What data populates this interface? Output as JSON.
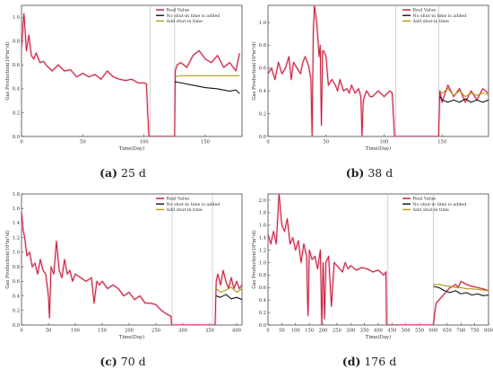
{
  "chart_data": [
    {
      "type": "line",
      "caption_label": "(a)",
      "caption_text": "25 d",
      "xlabel": "Time(Day)",
      "ylabel": "Gas Production(10⁴m³/d)",
      "xlim": [
        0,
        180
      ],
      "ylim": [
        0,
        1.1
      ],
      "xticks": [
        0,
        50,
        100,
        150
      ],
      "yticks": [
        0.0,
        0.2,
        0.4,
        0.6,
        0.8,
        1.0
      ],
      "vlines": [
        105,
        125
      ],
      "legend_position": "top-right",
      "series": [
        {
          "name": "Real Value",
          "color": "#c0142a",
          "x": [
            0,
            2,
            4,
            6,
            8,
            10,
            12,
            15,
            18,
            20,
            25,
            30,
            35,
            40,
            45,
            50,
            55,
            60,
            65,
            70,
            75,
            80,
            85,
            90,
            95,
            100,
            102,
            103,
            104,
            125,
            125.5,
            127,
            130,
            135,
            140,
            145,
            150,
            155,
            160,
            165,
            170,
            175,
            178
          ],
          "y": [
            0.75,
            1.03,
            0.72,
            0.85,
            0.68,
            0.65,
            0.7,
            0.62,
            0.63,
            0.6,
            0.55,
            0.6,
            0.55,
            0.56,
            0.5,
            0.53,
            0.5,
            0.52,
            0.48,
            0.55,
            0.5,
            0.48,
            0.47,
            0.48,
            0.45,
            0.45,
            0.44,
            0.2,
            0.0,
            0.0,
            0.55,
            0.6,
            0.62,
            0.58,
            0.68,
            0.72,
            0.65,
            0.62,
            0.68,
            0.58,
            0.62,
            0.55,
            0.7
          ]
        },
        {
          "name": "No shut-in time is added",
          "color": "#111111",
          "x": [
            125,
            130,
            140,
            150,
            160,
            170,
            175,
            178
          ],
          "y": [
            0.46,
            0.45,
            0.43,
            0.41,
            0.4,
            0.38,
            0.39,
            0.36
          ]
        },
        {
          "name": "Add shut-in time",
          "color": "#b59a0e",
          "x": [
            125,
            130,
            140,
            150,
            160,
            170,
            178
          ],
          "y": [
            0.5,
            0.51,
            0.51,
            0.51,
            0.51,
            0.51,
            0.51
          ]
        }
      ]
    },
    {
      "type": "line",
      "caption_label": "(b)",
      "caption_text": "38 d",
      "xlabel": "Time(Day)",
      "ylabel": "Gas Production(10⁴m³/d)",
      "xlim": [
        0,
        190
      ],
      "ylim": [
        0,
        1.15
      ],
      "xticks": [
        0,
        50,
        100,
        150
      ],
      "yticks": [
        0.0,
        0.2,
        0.4,
        0.6,
        0.8,
        1.0
      ],
      "vlines": [
        110,
        147
      ],
      "legend_position": "top-right",
      "series": [
        {
          "name": "Real Value",
          "color": "#c0142a",
          "x": [
            0,
            3,
            6,
            9,
            12,
            15,
            18,
            20,
            22,
            25,
            28,
            30,
            32,
            35,
            37,
            38,
            39,
            40,
            42,
            44,
            45,
            46,
            47,
            48,
            50,
            52,
            55,
            58,
            60,
            62,
            65,
            68,
            70,
            72,
            75,
            78,
            80,
            81,
            82,
            83,
            85,
            88,
            90,
            95,
            100,
            105,
            107,
            108,
            109,
            147,
            148,
            150,
            155,
            160,
            165,
            170,
            175,
            180,
            185,
            190
          ],
          "y": [
            0.55,
            0.6,
            0.5,
            0.65,
            0.55,
            0.6,
            0.7,
            0.5,
            0.65,
            0.6,
            0.55,
            0.65,
            0.7,
            0.62,
            0.5,
            0.0,
            0.9,
            1.15,
            1.0,
            0.7,
            0.8,
            0.1,
            0.75,
            0.75,
            0.7,
            0.45,
            0.5,
            0.45,
            0.4,
            0.5,
            0.4,
            0.42,
            0.38,
            0.45,
            0.38,
            0.42,
            0.35,
            0.0,
            0.3,
            0.35,
            0.4,
            0.35,
            0.35,
            0.4,
            0.35,
            0.4,
            0.38,
            0.2,
            0.0,
            0.0,
            0.4,
            0.3,
            0.45,
            0.35,
            0.42,
            0.3,
            0.4,
            0.32,
            0.42,
            0.38
          ]
        },
        {
          "name": "No shut-in time is added",
          "color": "#111111",
          "x": [
            148,
            150,
            155,
            160,
            165,
            170,
            175,
            180,
            185,
            190
          ],
          "y": [
            0.35,
            0.32,
            0.3,
            0.32,
            0.3,
            0.33,
            0.3,
            0.32,
            0.3,
            0.32
          ]
        },
        {
          "name": "Add shut-in time",
          "color": "#b59a0e",
          "x": [
            148,
            150,
            155,
            160,
            165,
            170,
            175,
            180,
            185,
            190
          ],
          "y": [
            0.4,
            0.38,
            0.42,
            0.36,
            0.4,
            0.35,
            0.38,
            0.36,
            0.38,
            0.37
          ]
        }
      ]
    },
    {
      "type": "line",
      "caption_label": "(c)",
      "caption_text": "70 d",
      "xlabel": "Time(Day)",
      "ylabel": "Gas Production(10⁴m³/d)",
      "xlim": [
        0,
        410
      ],
      "ylim": [
        0,
        1.8
      ],
      "xticks": [
        0,
        50,
        100,
        150,
        200,
        250,
        300,
        350,
        400
      ],
      "yticks": [
        0.0,
        0.2,
        0.4,
        0.6,
        0.8,
        1.0,
        1.2,
        1.4,
        1.6,
        1.8
      ],
      "vlines": [
        280,
        355
      ],
      "legend_position": "top-right",
      "series": [
        {
          "name": "Real Value",
          "color": "#c0142a",
          "x": [
            0,
            3,
            6,
            10,
            15,
            20,
            25,
            30,
            35,
            40,
            45,
            50,
            52,
            55,
            60,
            65,
            70,
            75,
            80,
            85,
            90,
            95,
            100,
            110,
            120,
            130,
            135,
            140,
            145,
            150,
            160,
            170,
            180,
            190,
            200,
            210,
            220,
            230,
            240,
            250,
            260,
            270,
            278,
            279,
            360,
            362,
            365,
            370,
            375,
            380,
            385,
            390,
            395,
            400,
            405,
            410
          ],
          "y": [
            1.55,
            1.3,
            1.2,
            0.95,
            1.0,
            0.8,
            0.85,
            0.7,
            0.9,
            0.75,
            0.7,
            0.4,
            0.1,
            0.8,
            0.7,
            1.15,
            0.75,
            0.65,
            0.9,
            0.7,
            0.75,
            0.6,
            0.7,
            0.65,
            0.6,
            0.65,
            0.3,
            0.6,
            0.55,
            0.6,
            0.5,
            0.55,
            0.5,
            0.4,
            0.45,
            0.35,
            0.4,
            0.3,
            0.3,
            0.28,
            0.2,
            0.15,
            0.12,
            0.0,
            0.0,
            0.6,
            0.7,
            0.55,
            0.75,
            0.6,
            0.5,
            0.65,
            0.5,
            0.6,
            0.5,
            0.55
          ]
        },
        {
          "name": "No shut-in time is added",
          "color": "#111111",
          "x": [
            362,
            370,
            380,
            390,
            400,
            410
          ],
          "y": [
            0.4,
            0.38,
            0.42,
            0.36,
            0.38,
            0.35
          ]
        },
        {
          "name": "Add shut-in time",
          "color": "#b59a0e",
          "x": [
            362,
            370,
            380,
            390,
            400,
            410
          ],
          "y": [
            0.5,
            0.45,
            0.48,
            0.52,
            0.45,
            0.5
          ]
        }
      ]
    },
    {
      "type": "line",
      "caption_label": "(d)",
      "caption_text": "176 d",
      "xlabel": "Time(Day)",
      "ylabel": "Gas Production(10⁴m³/d)",
      "xlim": [
        0,
        800
      ],
      "ylim": [
        0,
        2.1
      ],
      "xticks": [
        0,
        50,
        100,
        150,
        200,
        250,
        300,
        350,
        400,
        450,
        500,
        550,
        600,
        650,
        700,
        750,
        800
      ],
      "yticks": [
        0.0,
        0.2,
        0.4,
        0.6,
        0.8,
        1.0,
        1.2,
        1.4,
        1.6,
        1.8,
        2.0
      ],
      "vlines": [
        435,
        600
      ],
      "legend_position": "top-right",
      "series": [
        {
          "name": "Real Value",
          "color": "#c0142a",
          "x": [
            0,
            10,
            20,
            30,
            40,
            50,
            60,
            70,
            80,
            90,
            100,
            110,
            120,
            130,
            140,
            145,
            150,
            160,
            170,
            180,
            190,
            195,
            200,
            205,
            210,
            220,
            230,
            240,
            250,
            260,
            270,
            280,
            290,
            300,
            320,
            340,
            360,
            380,
            400,
            420,
            428,
            430,
            600,
            605,
            610,
            620,
            630,
            640,
            650,
            660,
            670,
            680,
            690,
            700,
            720,
            740,
            760,
            780,
            800
          ],
          "y": [
            1.45,
            1.3,
            1.5,
            1.3,
            2.1,
            1.6,
            1.5,
            1.7,
            1.3,
            1.4,
            1.2,
            1.35,
            1.0,
            1.3,
            1.1,
            0.15,
            1.2,
            1.05,
            1.1,
            0.9,
            1.2,
            0.0,
            1.0,
            0.1,
            1.0,
            1.1,
            0.3,
            1.0,
            0.95,
            0.9,
            0.85,
            1.0,
            0.9,
            0.95,
            0.88,
            0.92,
            0.9,
            0.85,
            0.88,
            0.8,
            0.85,
            0.0,
            0.0,
            0.2,
            0.35,
            0.4,
            0.45,
            0.5,
            0.55,
            0.6,
            0.62,
            0.65,
            0.6,
            0.7,
            0.65,
            0.62,
            0.6,
            0.58,
            0.55
          ]
        },
        {
          "name": "No shut-in time is added",
          "color": "#111111",
          "x": [
            600,
            620,
            640,
            660,
            680,
            700,
            720,
            740,
            760,
            780,
            800
          ],
          "y": [
            0.62,
            0.6,
            0.55,
            0.52,
            0.55,
            0.5,
            0.52,
            0.48,
            0.5,
            0.47,
            0.48
          ]
        },
        {
          "name": "Add shut-in time",
          "color": "#b59a0e",
          "x": [
            600,
            620,
            640,
            660,
            680,
            700,
            720,
            740,
            760,
            780,
            800
          ],
          "y": [
            0.65,
            0.65,
            0.63,
            0.62,
            0.6,
            0.6,
            0.58,
            0.58,
            0.57,
            0.56,
            0.55
          ]
        }
      ]
    }
  ]
}
